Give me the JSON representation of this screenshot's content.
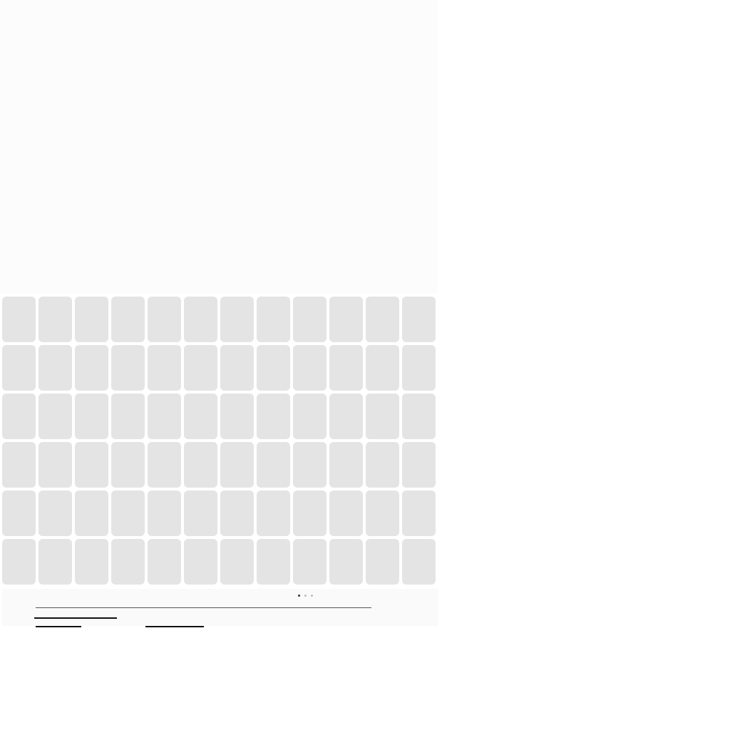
{
  "grid": {
    "rows": 6,
    "columns": 12,
    "tile_color": "#e4e4e4"
  },
  "background": {
    "page_color": "#ffffff",
    "top_panel_color": "#fcfcfc",
    "footer_color": "#fafafa"
  }
}
